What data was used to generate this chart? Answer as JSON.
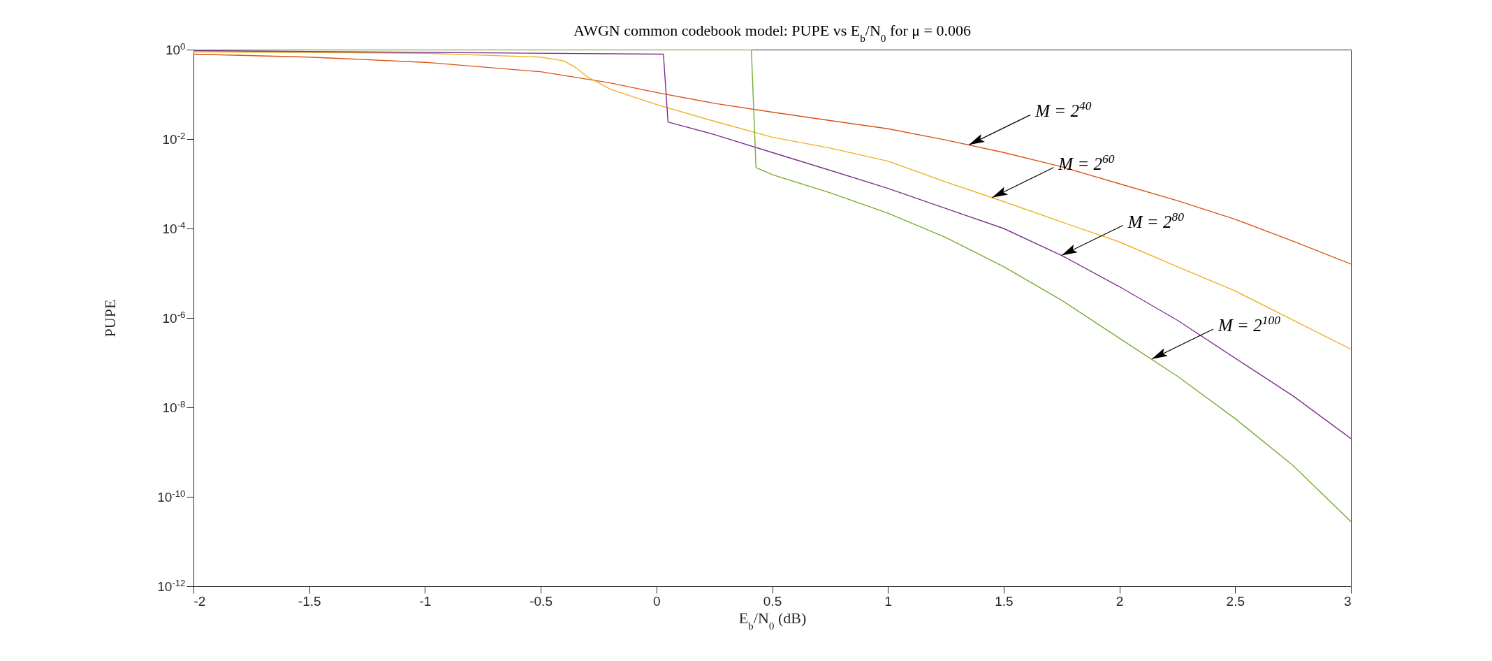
{
  "chart_data": {
    "type": "line",
    "title": "AWGN common codebook model: PUPE vs E$_{b}$/N$_{0}$ for μ = 0.006",
    "xlabel": "E$_{b}$/N$_{0}$ (dB)",
    "ylabel": "PUPE",
    "log": "y",
    "grid": false,
    "legend": false,
    "line_style": "solid",
    "marker": "none",
    "xlim": [
      -2,
      3
    ],
    "xticks": [
      -2,
      -1.5,
      -1,
      -0.5,
      0,
      0.5,
      1,
      1.5,
      2,
      2.5,
      3
    ],
    "ylim": [
      1e-12,
      1
    ],
    "yticks": [
      {
        "value": 1e-12,
        "label": "10$^{-12}$"
      },
      {
        "value": 1e-10,
        "label": "10$^{-10}$"
      },
      {
        "value": 1e-08,
        "label": "10$^{-8}$"
      },
      {
        "value": 1e-06,
        "label": "10$^{-6}$"
      },
      {
        "value": 0.0001,
        "label": "10$^{-4}$"
      },
      {
        "value": 0.01,
        "label": "10$^{-2}$"
      },
      {
        "value": 1,
        "label": "10$^{0}$"
      }
    ],
    "series": [
      {
        "color": "#d95319",
        "x": [
          -2,
          -1.5,
          -1,
          -0.5,
          -0.2,
          0,
          0.25,
          0.5,
          0.75,
          1,
          1.25,
          1.5,
          1.75,
          2,
          2.25,
          2.5,
          2.75,
          3
        ],
        "values": [
          0.79,
          0.68,
          0.52,
          0.32,
          0.18,
          0.11,
          0.063,
          0.04,
          0.026,
          0.017,
          0.0095,
          0.005,
          0.0024,
          0.001,
          0.00042,
          0.00016,
          5.2e-05,
          1.6e-05
        ]
      },
      {
        "color": "#edb120",
        "x": [
          -2,
          -1,
          -0.5,
          -0.4,
          -0.35,
          -0.3,
          -0.2,
          0,
          0.25,
          0.5,
          0.75,
          1,
          1.25,
          1.5,
          1.75,
          2,
          2.25,
          2.5,
          2.75,
          3
        ],
        "values": [
          0.89,
          0.83,
          0.68,
          0.56,
          0.4,
          0.25,
          0.13,
          0.059,
          0.025,
          0.011,
          0.0063,
          0.0032,
          0.0011,
          0.0004,
          0.00014,
          5e-05,
          1.4e-05,
          4e-06,
          8.9e-07,
          2e-07
        ]
      },
      {
        "color": "#7e2f8e",
        "x": [
          -2,
          0.03,
          0.05,
          0.25,
          0.5,
          0.75,
          1,
          1.25,
          1.5,
          1.75,
          2,
          2.25,
          2.5,
          2.75,
          3
        ],
        "values": [
          0.95,
          0.79,
          0.024,
          0.0126,
          0.005,
          0.002,
          0.00079,
          0.00028,
          0.0001,
          2.5e-05,
          5e-06,
          8.9e-07,
          1.26e-07,
          1.8e-08,
          2e-09
        ]
      },
      {
        "color": "#77ac30",
        "x": [
          -2,
          0.41,
          0.43,
          0.5,
          0.75,
          1,
          1.25,
          1.5,
          1.75,
          2,
          2.25,
          2.5,
          2.75,
          3
        ],
        "values": [
          1,
          1,
          0.0023,
          0.0016,
          0.00063,
          0.00022,
          6.3e-05,
          1.4e-05,
          2.5e-06,
          3.5e-07,
          5e-08,
          5.6e-09,
          5e-10,
          2.8e-11
        ]
      }
    ],
    "annotations": [
      {
        "text": "M = 2$^{40}$",
        "x": 1.35,
        "y": 0.0074
      },
      {
        "text": "M = 2$^{60}$",
        "x": 1.45,
        "y": 0.00049
      },
      {
        "text": "M = 2$^{80}$",
        "x": 1.75,
        "y": 2.5e-05
      },
      {
        "text": "M = 2$^{100}$",
        "x": 2.14,
        "y": 1.2e-07
      }
    ]
  }
}
